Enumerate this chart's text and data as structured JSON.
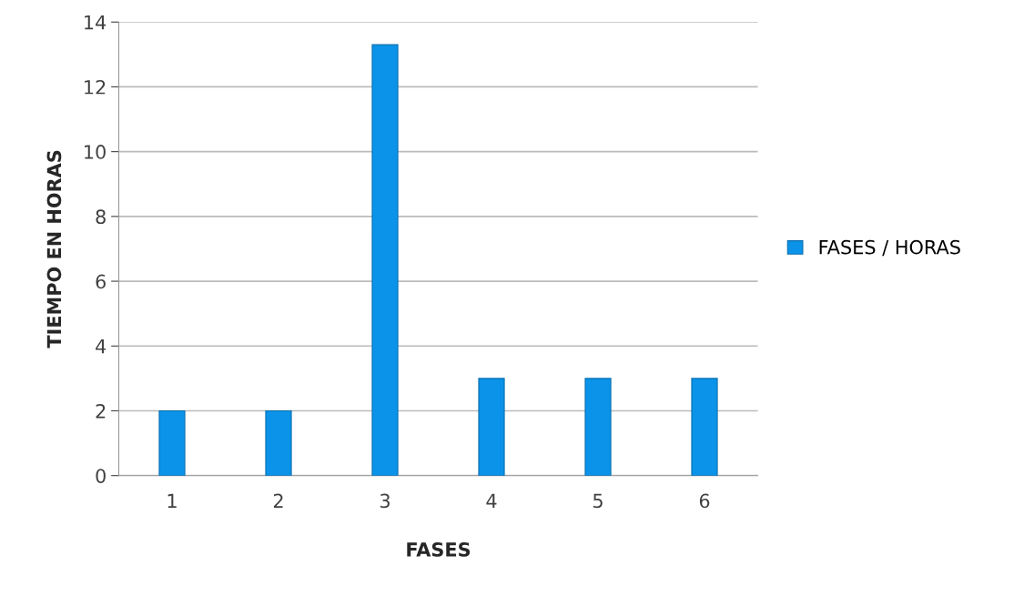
{
  "chart_data": {
    "type": "bar",
    "xlabel": "FASES",
    "ylabel": "TIEMPO EN HORAS",
    "categories": [
      "1",
      "2",
      "3",
      "4",
      "5",
      "6"
    ],
    "series": [
      {
        "name": "FASES / HORAS",
        "color": "#0a93e8",
        "values": [
          2,
          2,
          13.3,
          3,
          3,
          3
        ]
      }
    ],
    "ylim": [
      0,
      14
    ],
    "yticks": [
      0,
      2,
      4,
      6,
      8,
      10,
      12,
      14
    ],
    "grid": "y",
    "legend": "right"
  }
}
